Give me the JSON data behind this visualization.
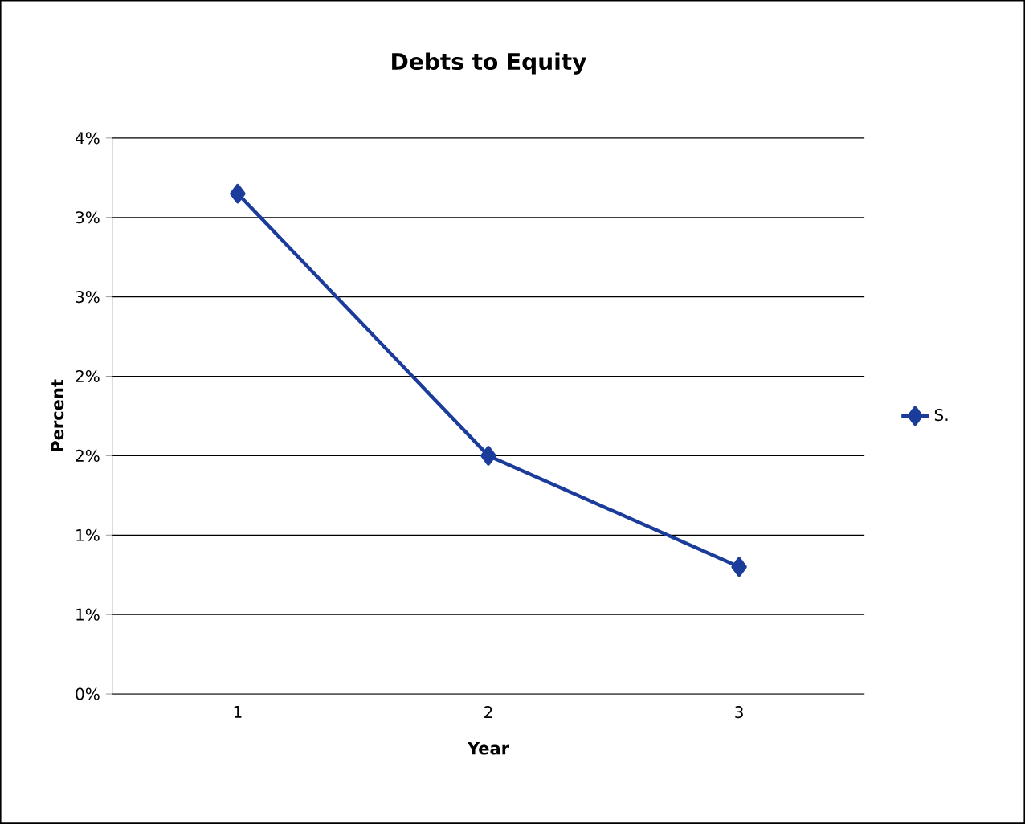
{
  "chart_data": {
    "type": "line",
    "title": "Debts to Equity",
    "xlabel": "Year",
    "ylabel": "Percent",
    "categories": [
      "1",
      "2",
      "3"
    ],
    "series": [
      {
        "name": "S.",
        "color": "#1c3c9c",
        "values": [
          3.15,
          1.5,
          0.8
        ]
      }
    ],
    "ylim": [
      0,
      3.5
    ],
    "yticks": [
      {
        "value": 0,
        "label": "0%"
      },
      {
        "value": 0.5,
        "label": "1%"
      },
      {
        "value": 1,
        "label": "1%"
      },
      {
        "value": 1.5,
        "label": "2%"
      },
      {
        "value": 2,
        "label": "2%"
      },
      {
        "value": 2.5,
        "label": "3%"
      },
      {
        "value": 3,
        "label": "3%"
      },
      {
        "value": 3.5,
        "label": "4%"
      }
    ],
    "grid": "y",
    "legend": "right",
    "marker": "diamond",
    "line_style": "solid"
  }
}
